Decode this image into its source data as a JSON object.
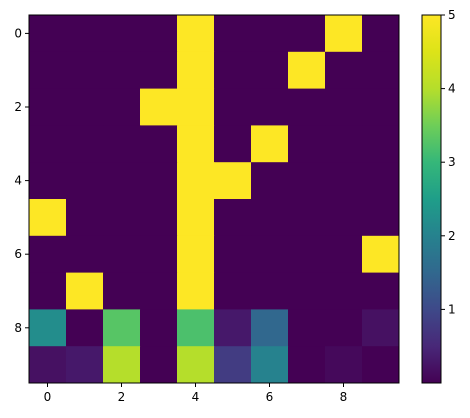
{
  "chart_data": {
    "type": "heatmap",
    "colormap": "viridis",
    "title": "",
    "xlabel": "",
    "ylabel": "",
    "rows": 10,
    "cols": 10,
    "vmin": 0,
    "vmax": 5,
    "x_ticks": [
      0,
      2,
      4,
      6,
      8
    ],
    "x_tick_labels": [
      "0",
      "2",
      "4",
      "6",
      "8"
    ],
    "y_ticks": [
      0,
      2,
      4,
      6,
      8
    ],
    "y_tick_labels": [
      "0",
      "2",
      "4",
      "6",
      "8"
    ],
    "colorbar_ticks": [
      1,
      2,
      3,
      4,
      5
    ],
    "colorbar_tick_labels": [
      "1",
      "2",
      "3",
      "4",
      "5"
    ],
    "values": [
      [
        0,
        0,
        0,
        0,
        5,
        0,
        0,
        0,
        5,
        0
      ],
      [
        0,
        0,
        0,
        0,
        5,
        0,
        0,
        5,
        0,
        0
      ],
      [
        0,
        0,
        0,
        5,
        5,
        0,
        0,
        0,
        0,
        0
      ],
      [
        0,
        0,
        0,
        0,
        5,
        0,
        5,
        0,
        0,
        0
      ],
      [
        0,
        0,
        0,
        0,
        5,
        5,
        0,
        0,
        0,
        0
      ],
      [
        5,
        0,
        0,
        0,
        5,
        0,
        0,
        0,
        0,
        0
      ],
      [
        0,
        0,
        0,
        0,
        5,
        0,
        0,
        0,
        0,
        5
      ],
      [
        0,
        5,
        0,
        0,
        5,
        0,
        0,
        0,
        0,
        0
      ],
      [
        2.2,
        0,
        3.3,
        0,
        3.2,
        0.3,
        1.5,
        0,
        0,
        0.2
      ],
      [
        0.2,
        0.3,
        4.0,
        0,
        4.0,
        0.8,
        2.0,
        0,
        0.1,
        0
      ]
    ]
  }
}
